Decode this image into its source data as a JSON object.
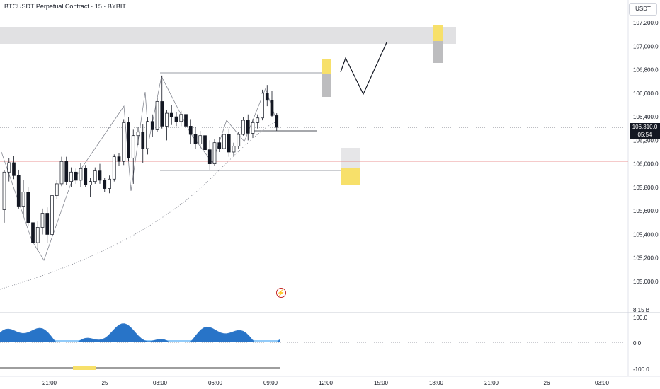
{
  "header": {
    "title": "BTCUSDT Perpetual Contract · 15 · BYBIT",
    "currency": "USDT"
  },
  "price_tag": {
    "price": "106,310.0",
    "countdown": "05:54"
  },
  "colors": {
    "up": "#ffffff",
    "down": "#131722",
    "grid": "#e0e3eb",
    "zone_gray": "#d8d8da",
    "zone_yellow": "#f7e06a",
    "red_line": "#e57373",
    "osc_dark": "#1565c0",
    "osc_light": "#64b5f6"
  },
  "icons": {
    "flash": "lightning-icon"
  },
  "chart_data": [
    {
      "type": "candlestick",
      "title": "BTCUSDT Perpetual Contract · 15 · BYBIT",
      "y_ticks": [
        "107,200.0",
        "107,000.0",
        "106,800.0",
        "106,600.0",
        "106,400.0",
        "106,200.0",
        "106,000.0",
        "105,800.0",
        "105,600.0",
        "105,400.0",
        "105,200.0",
        "105,000.0"
      ],
      "x_ticks": [
        "21:00",
        "25",
        "03:00",
        "06:00",
        "09:00",
        "12:00",
        "15:00",
        "18:00",
        "21:00",
        "26",
        "03:00"
      ],
      "ylim": [
        104830,
        107400
      ],
      "last_price": 106310,
      "candles": [
        [
          105610,
          105950,
          105500,
          105930
        ],
        [
          105930,
          106050,
          105850,
          106010
        ],
        [
          106010,
          106070,
          105870,
          105900
        ],
        [
          105900,
          105950,
          105620,
          105640
        ],
        [
          105640,
          105860,
          105560,
          105760
        ],
        [
          105760,
          105800,
          105470,
          105500
        ],
        [
          105500,
          105560,
          105200,
          105330
        ],
        [
          105330,
          105510,
          105260,
          105460
        ],
        [
          105460,
          105620,
          105400,
          105580
        ],
        [
          105580,
          105630,
          105330,
          105400
        ],
        [
          105400,
          105750,
          105380,
          105730
        ],
        [
          105730,
          105860,
          105700,
          105830
        ],
        [
          105830,
          106060,
          105810,
          106020
        ],
        [
          106020,
          106060,
          105820,
          105850
        ],
        [
          105850,
          105970,
          105800,
          105930
        ],
        [
          105930,
          105960,
          105830,
          105860
        ],
        [
          105860,
          106010,
          105800,
          105960
        ],
        [
          105960,
          105990,
          105800,
          105820
        ],
        [
          105820,
          105880,
          105720,
          105850
        ],
        [
          105850,
          105970,
          105830,
          105940
        ],
        [
          105940,
          106000,
          105830,
          105860
        ],
        [
          105860,
          105880,
          105760,
          105790
        ],
        [
          105790,
          105900,
          105750,
          105870
        ],
        [
          105870,
          106080,
          105850,
          106060
        ],
        [
          106060,
          106090,
          105980,
          106020
        ],
        [
          106020,
          106380,
          105990,
          106350
        ],
        [
          106350,
          106400,
          106020,
          106050
        ],
        [
          106050,
          106290,
          105830,
          106240
        ],
        [
          106240,
          106310,
          106160,
          106270
        ],
        [
          106270,
          106340,
          106010,
          106130
        ],
        [
          106130,
          106400,
          106080,
          106360
        ],
        [
          106360,
          106420,
          106230,
          106290
        ],
        [
          106290,
          106560,
          106270,
          106530
        ],
        [
          106530,
          106750,
          106300,
          106320
        ],
        [
          106320,
          106460,
          106200,
          106430
        ],
        [
          106430,
          106500,
          106330,
          106400
        ],
        [
          106400,
          106440,
          106320,
          106360
        ],
        [
          106360,
          106450,
          106320,
          106420
        ],
        [
          106420,
          106450,
          106240,
          106320
        ],
        [
          106320,
          106380,
          106170,
          106250
        ],
        [
          106250,
          106310,
          106130,
          106170
        ],
        [
          106170,
          106280,
          106130,
          106240
        ],
        [
          106240,
          106330,
          106100,
          106120
        ],
        [
          106120,
          106200,
          105950,
          106000
        ],
        [
          106000,
          106210,
          105980,
          106180
        ],
        [
          106180,
          106230,
          106100,
          106130
        ],
        [
          106130,
          106280,
          106100,
          106250
        ],
        [
          106250,
          106300,
          106060,
          106100
        ],
        [
          106100,
          106180,
          106060,
          106150
        ],
        [
          106150,
          106270,
          106130,
          106250
        ],
        [
          106250,
          106400,
          106240,
          106370
        ],
        [
          106370,
          106420,
          106200,
          106260
        ],
        [
          106260,
          106380,
          106220,
          106350
        ],
        [
          106350,
          106420,
          106300,
          106390
        ],
        [
          106390,
          106630,
          106370,
          106600
        ],
        [
          106600,
          106670,
          106490,
          106540
        ],
        [
          106540,
          106620,
          106400,
          106410
        ],
        [
          106410,
          106430,
          106280,
          106310
        ]
      ]
    },
    {
      "type": "area",
      "y_ticks": [
        "100.0",
        "0.0",
        "-100.0"
      ],
      "badge": "8.15 B"
    }
  ]
}
